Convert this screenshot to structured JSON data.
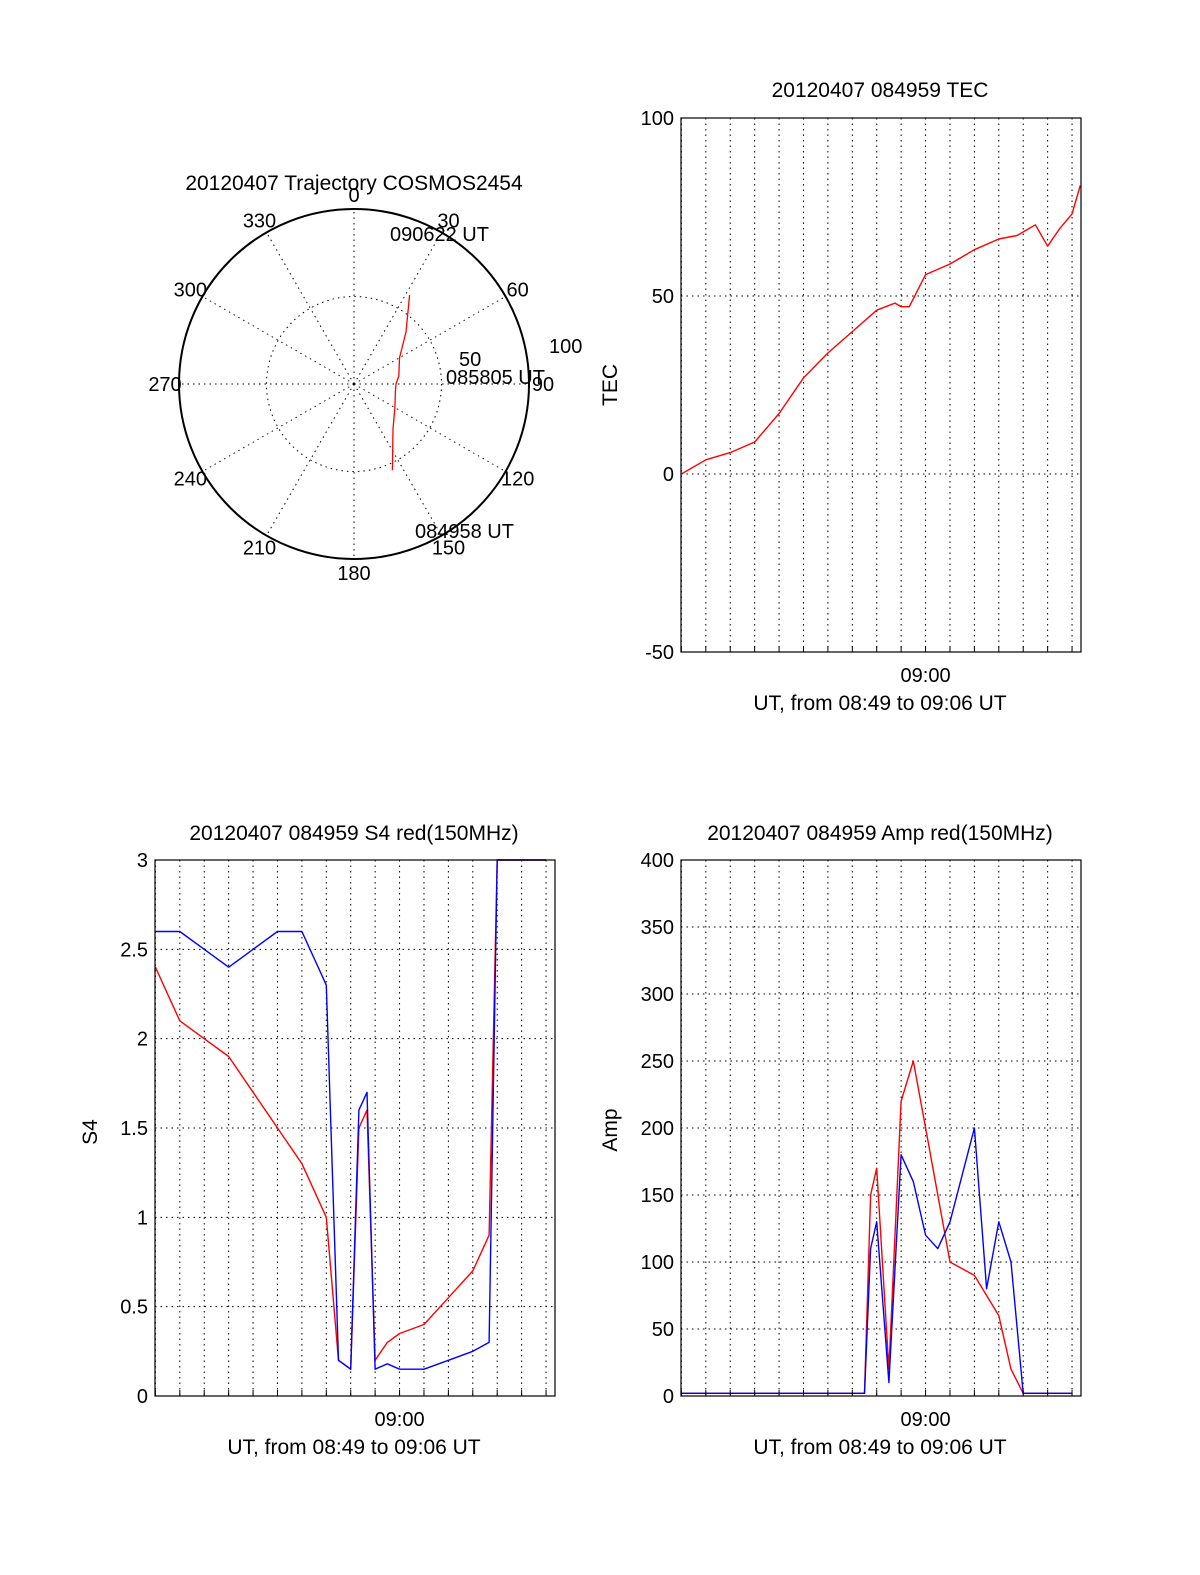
{
  "colors": {
    "red": "#ff0000",
    "blue": "#0000ff",
    "axis": "#000000",
    "background": "#ffffff"
  },
  "chart_data": [
    {
      "type": "scatter",
      "subtype": "polar-trajectory",
      "title": "20120407 Trajectory COSMOS2454",
      "azimuth_ticks": [
        "0",
        "30",
        "60",
        "90",
        "120",
        "150",
        "180",
        "210",
        "240",
        "270",
        "300",
        "330"
      ],
      "elevation_ring_labels": [
        "50",
        "100"
      ],
      "point_labels": [
        "090622 UT",
        "085805 UT",
        "084958 UT"
      ],
      "series": [
        {
          "color": "#ff0000",
          "points": [
            [
              156,
              54
            ],
            [
              139,
              34
            ],
            [
              120,
              27
            ],
            [
              100,
              24
            ],
            [
              90,
              24
            ],
            [
              80,
              26
            ],
            [
              60,
              30
            ],
            [
              45,
              42
            ],
            [
              32,
              60
            ]
          ]
        }
      ]
    },
    {
      "type": "line",
      "title": "20120407 084959 TEC",
      "xlabel": "UT, from 08:49 to 09:06 UT",
      "ylabel": "TEC",
      "x_tick_labels": [
        "09:00"
      ],
      "y_tick_labels": [
        "100",
        "50",
        "0",
        "-50"
      ],
      "xlim": [
        "08:49:59",
        "09:06:22"
      ],
      "ylim": [
        -50,
        100
      ],
      "grid": true,
      "series": [
        {
          "color": "#ff0000",
          "x": [
            "08:50:00",
            "08:51:00",
            "08:52:00",
            "08:53:00",
            "08:54:00",
            "08:55:00",
            "08:56:00",
            "08:57:00",
            "08:58:00",
            "08:58:45",
            "08:59:00",
            "08:59:20",
            "09:00:00",
            "09:01:00",
            "09:02:00",
            "09:03:00",
            "09:03:45",
            "09:04:30",
            "09:05:00",
            "09:05:30",
            "09:06:00",
            "09:06:20"
          ],
          "y": [
            0,
            4,
            6,
            9,
            17,
            27,
            34,
            40,
            46,
            48,
            47,
            47,
            56,
            59,
            63,
            66,
            67,
            70,
            64,
            69,
            73,
            81
          ]
        }
      ]
    },
    {
      "type": "line",
      "title": "20120407 084959 S4 red(150MHz)",
      "xlabel": "UT, from 08:49 to 09:06 UT",
      "ylabel": "S4",
      "x_tick_labels": [
        "09:00"
      ],
      "y_tick_labels": [
        "3",
        "2.5",
        "2",
        "1.5",
        "1",
        "0.5",
        "0"
      ],
      "xlim": [
        "08:49:59",
        "09:06:22"
      ],
      "ylim": [
        0,
        3
      ],
      "grid": true,
      "series": [
        {
          "color": "#ff0000",
          "x": [
            "08:50:00",
            "08:51:00",
            "08:52:00",
            "08:53:00",
            "08:54:00",
            "08:55:00",
            "08:56:00",
            "08:57:00",
            "08:57:30",
            "08:58:00",
            "08:58:20",
            "08:58:40",
            "08:59:00",
            "08:59:30",
            "09:00:00",
            "09:01:00",
            "09:02:00",
            "09:03:00",
            "09:03:40",
            "09:04:00",
            "09:05:00",
            "09:06:00"
          ],
          "y": [
            2.4,
            2.1,
            2.0,
            1.9,
            1.7,
            1.5,
            1.3,
            1.0,
            0.2,
            0.15,
            1.5,
            1.6,
            0.2,
            0.3,
            0.35,
            0.4,
            0.55,
            0.7,
            0.9,
            3.0,
            3.0,
            3.0
          ]
        },
        {
          "color": "#0000ff",
          "x": [
            "08:50:00",
            "08:51:00",
            "08:52:00",
            "08:53:00",
            "08:54:00",
            "08:55:00",
            "08:56:00",
            "08:57:00",
            "08:57:30",
            "08:58:00",
            "08:58:20",
            "08:58:40",
            "08:59:00",
            "08:59:30",
            "09:00:00",
            "09:01:00",
            "09:02:00",
            "09:03:00",
            "09:03:40",
            "09:04:00",
            "09:05:00",
            "09:06:00"
          ],
          "y": [
            2.6,
            2.6,
            2.5,
            2.4,
            2.5,
            2.6,
            2.6,
            2.3,
            0.2,
            0.15,
            1.6,
            1.7,
            0.15,
            0.18,
            0.15,
            0.15,
            0.2,
            0.25,
            0.3,
            3.0,
            3.0,
            3.0
          ]
        }
      ]
    },
    {
      "type": "line",
      "title": "20120407 084959 Amp red(150MHz)",
      "xlabel": "UT, from 08:49 to 09:06 UT",
      "ylabel": "Amp",
      "x_tick_labels": [
        "09:00"
      ],
      "y_tick_labels": [
        "400",
        "350",
        "300",
        "250",
        "200",
        "150",
        "100",
        "50",
        "0"
      ],
      "xlim": [
        "08:49:59",
        "09:06:22"
      ],
      "ylim": [
        0,
        400
      ],
      "grid": true,
      "series": [
        {
          "color": "#ff0000",
          "x": [
            "08:50:00",
            "08:57:30",
            "08:57:45",
            "08:58:00",
            "08:58:30",
            "08:59:00",
            "08:59:30",
            "09:00:00",
            "09:00:30",
            "09:01:00",
            "09:02:00",
            "09:03:00",
            "09:03:30",
            "09:04:00",
            "09:06:00"
          ],
          "y": [
            2,
            2,
            150,
            170,
            20,
            220,
            250,
            200,
            150,
            100,
            90,
            60,
            20,
            2,
            2
          ]
        },
        {
          "color": "#0000ff",
          "x": [
            "08:50:00",
            "08:57:30",
            "08:57:45",
            "08:58:00",
            "08:58:30",
            "08:59:00",
            "08:59:30",
            "09:00:00",
            "09:00:30",
            "09:01:00",
            "09:02:00",
            "09:02:30",
            "09:03:00",
            "09:03:30",
            "09:04:00",
            "09:06:00"
          ],
          "y": [
            2,
            2,
            110,
            130,
            10,
            180,
            160,
            120,
            110,
            130,
            200,
            80,
            130,
            100,
            2,
            2
          ]
        }
      ]
    }
  ]
}
